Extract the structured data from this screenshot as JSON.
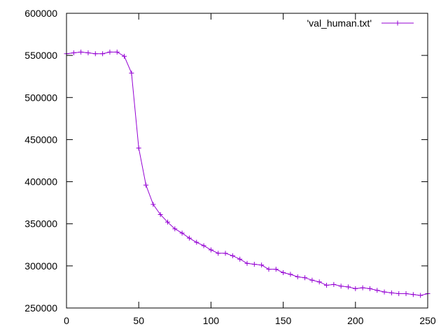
{
  "chart_data": {
    "type": "line",
    "title": "",
    "xlabel": "",
    "ylabel": "",
    "xlim": [
      0,
      250
    ],
    "ylim": [
      250000,
      600000
    ],
    "x_ticks": [
      0,
      50,
      100,
      150,
      200,
      250
    ],
    "y_ticks": [
      250000,
      300000,
      350000,
      400000,
      450000,
      500000,
      550000,
      600000
    ],
    "grid": false,
    "legend_position": "top-right",
    "series": [
      {
        "name": "'val_human.txt'",
        "color": "#9400d3",
        "marker": "plus",
        "x": [
          0,
          5,
          10,
          15,
          20,
          25,
          30,
          35,
          40,
          45,
          50,
          55,
          60,
          65,
          70,
          75,
          80,
          85,
          90,
          95,
          100,
          105,
          110,
          115,
          120,
          125,
          130,
          135,
          140,
          145,
          150,
          155,
          160,
          165,
          170,
          175,
          180,
          185,
          190,
          195,
          200,
          205,
          210,
          215,
          220,
          225,
          230,
          235,
          240,
          245,
          250
        ],
        "y": [
          552000,
          553000,
          554000,
          553000,
          552000,
          552000,
          554000,
          554000,
          549000,
          529000,
          440000,
          396000,
          373000,
          361000,
          352000,
          344000,
          339000,
          333000,
          328000,
          324000,
          319000,
          315000,
          315000,
          312000,
          308000,
          303000,
          302000,
          301000,
          296000,
          296000,
          292000,
          290000,
          287000,
          286000,
          283000,
          281000,
          277000,
          278000,
          276000,
          275000,
          273000,
          274000,
          273000,
          271000,
          269000,
          268000,
          267000,
          267000,
          266000,
          265000,
          267000
        ]
      }
    ]
  }
}
